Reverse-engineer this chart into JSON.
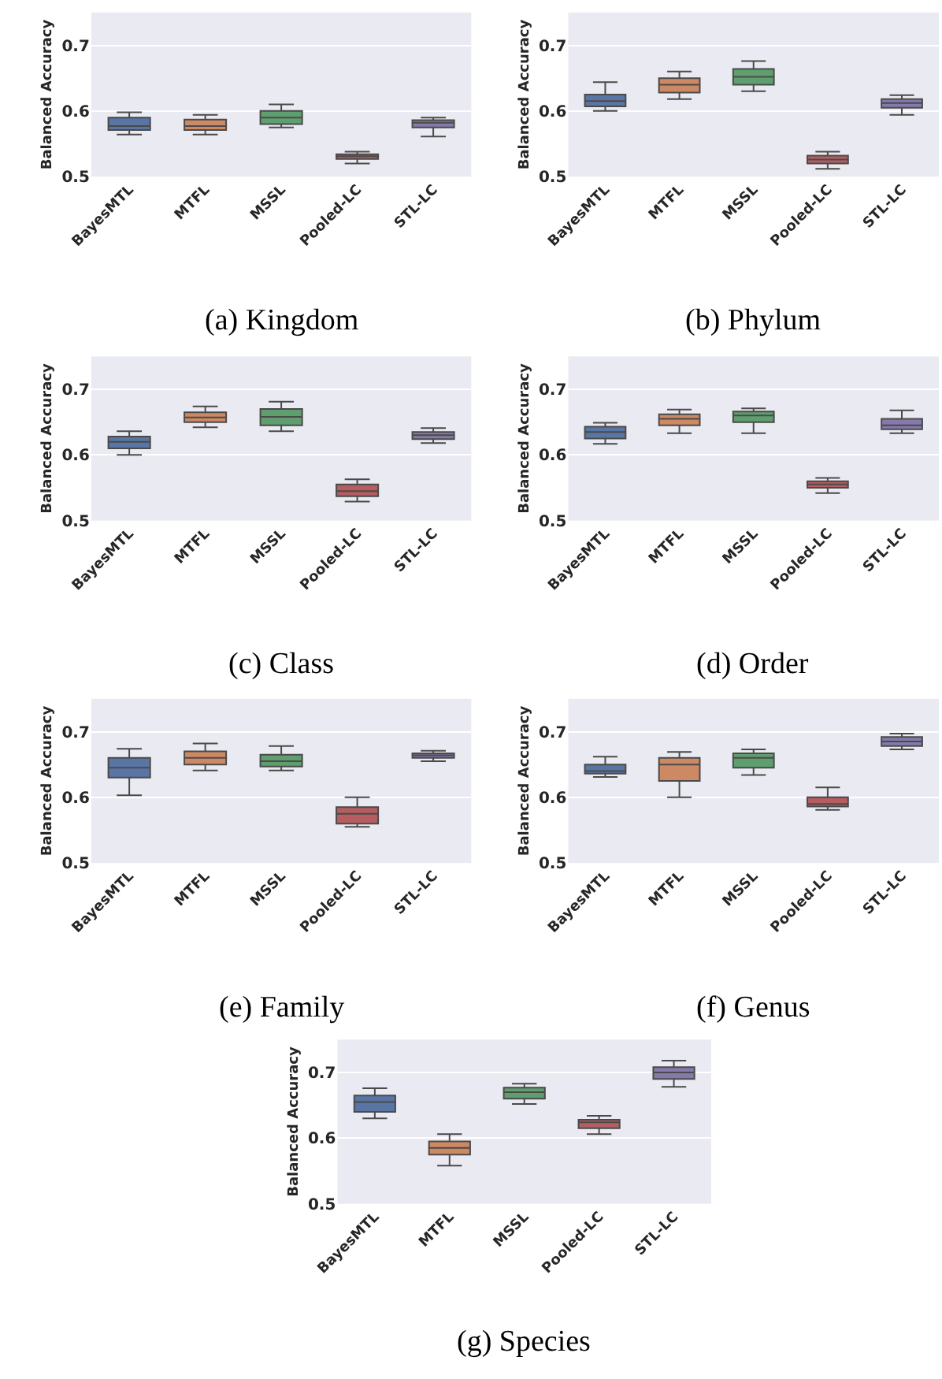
{
  "chart_data": [
    {
      "type": "box",
      "title": "(a) Kingdom",
      "ylabel": "Balanced Accuracy",
      "categories": [
        "BayesMTL",
        "MTFL",
        "MSSL",
        "Pooled-LC",
        "STL-LC"
      ],
      "colors": [
        "#5975a4",
        "#cc8963",
        "#5f9e6e",
        "#b55d60",
        "#857aab"
      ],
      "ylim": [
        0.5,
        0.75
      ],
      "yticks": [
        0.5,
        0.6,
        0.7
      ],
      "grid": "y",
      "boxes": [
        {
          "low": 0.564,
          "q1": 0.571,
          "median": 0.577,
          "q3": 0.59,
          "high": 0.598
        },
        {
          "low": 0.564,
          "q1": 0.571,
          "median": 0.577,
          "q3": 0.587,
          "high": 0.594
        },
        {
          "low": 0.575,
          "q1": 0.58,
          "median": 0.59,
          "q3": 0.6,
          "high": 0.61
        },
        {
          "low": 0.52,
          "q1": 0.527,
          "median": 0.531,
          "q3": 0.534,
          "high": 0.538
        },
        {
          "low": 0.561,
          "q1": 0.575,
          "median": 0.582,
          "q3": 0.586,
          "high": 0.59
        }
      ]
    },
    {
      "type": "box",
      "title": "(b) Phylum",
      "ylabel": "Balanced Accuracy",
      "categories": [
        "BayesMTL",
        "MTFL",
        "MSSL",
        "Pooled-LC",
        "STL-LC"
      ],
      "colors": [
        "#5975a4",
        "#cc8963",
        "#5f9e6e",
        "#b55d60",
        "#857aab"
      ],
      "ylim": [
        0.5,
        0.75
      ],
      "yticks": [
        0.5,
        0.6,
        0.7
      ],
      "grid": "y",
      "boxes": [
        {
          "low": 0.6,
          "q1": 0.607,
          "median": 0.615,
          "q3": 0.625,
          "high": 0.644
        },
        {
          "low": 0.618,
          "q1": 0.628,
          "median": 0.64,
          "q3": 0.65,
          "high": 0.66
        },
        {
          "low": 0.63,
          "q1": 0.64,
          "median": 0.652,
          "q3": 0.664,
          "high": 0.676
        },
        {
          "low": 0.512,
          "q1": 0.52,
          "median": 0.526,
          "q3": 0.532,
          "high": 0.538
        },
        {
          "low": 0.594,
          "q1": 0.605,
          "median": 0.612,
          "q3": 0.618,
          "high": 0.624
        }
      ]
    },
    {
      "type": "box",
      "title": "(c) Class",
      "ylabel": "Balanced Accuracy",
      "categories": [
        "BayesMTL",
        "MTFL",
        "MSSL",
        "Pooled-LC",
        "STL-LC"
      ],
      "colors": [
        "#5975a4",
        "#cc8963",
        "#5f9e6e",
        "#b55d60",
        "#857aab"
      ],
      "ylim": [
        0.5,
        0.75
      ],
      "yticks": [
        0.5,
        0.6,
        0.7
      ],
      "grid": "y",
      "boxes": [
        {
          "low": 0.6,
          "q1": 0.61,
          "median": 0.62,
          "q3": 0.628,
          "high": 0.636
        },
        {
          "low": 0.642,
          "q1": 0.65,
          "median": 0.657,
          "q3": 0.665,
          "high": 0.674
        },
        {
          "low": 0.636,
          "q1": 0.645,
          "median": 0.658,
          "q3": 0.67,
          "high": 0.681
        },
        {
          "low": 0.529,
          "q1": 0.537,
          "median": 0.545,
          "q3": 0.555,
          "high": 0.563
        },
        {
          "low": 0.618,
          "q1": 0.624,
          "median": 0.63,
          "q3": 0.635,
          "high": 0.641
        }
      ]
    },
    {
      "type": "box",
      "title": "(d) Order",
      "ylabel": "Balanced Accuracy",
      "categories": [
        "BayesMTL",
        "MTFL",
        "MSSL",
        "Pooled-LC",
        "STL-LC"
      ],
      "colors": [
        "#5975a4",
        "#cc8963",
        "#5f9e6e",
        "#b55d60",
        "#857aab"
      ],
      "ylim": [
        0.5,
        0.75
      ],
      "yticks": [
        0.5,
        0.6,
        0.7
      ],
      "grid": "y",
      "boxes": [
        {
          "low": 0.617,
          "q1": 0.625,
          "median": 0.635,
          "q3": 0.643,
          "high": 0.649
        },
        {
          "low": 0.633,
          "q1": 0.645,
          "median": 0.655,
          "q3": 0.662,
          "high": 0.669
        },
        {
          "low": 0.633,
          "q1": 0.65,
          "median": 0.66,
          "q3": 0.666,
          "high": 0.671
        },
        {
          "low": 0.542,
          "q1": 0.55,
          "median": 0.555,
          "q3": 0.56,
          "high": 0.565
        },
        {
          "low": 0.633,
          "q1": 0.639,
          "median": 0.645,
          "q3": 0.655,
          "high": 0.668
        }
      ]
    },
    {
      "type": "box",
      "title": "(e) Family",
      "ylabel": "Balanced Accuracy",
      "categories": [
        "BayesMTL",
        "MTFL",
        "MSSL",
        "Pooled-LC",
        "STL-LC"
      ],
      "colors": [
        "#5975a4",
        "#cc8963",
        "#5f9e6e",
        "#b55d60",
        "#857aab"
      ],
      "ylim": [
        0.5,
        0.75
      ],
      "yticks": [
        0.5,
        0.6,
        0.7
      ],
      "grid": "y",
      "boxes": [
        {
          "low": 0.603,
          "q1": 0.63,
          "median": 0.645,
          "q3": 0.66,
          "high": 0.674
        },
        {
          "low": 0.641,
          "q1": 0.65,
          "median": 0.66,
          "q3": 0.67,
          "high": 0.682
        },
        {
          "low": 0.641,
          "q1": 0.647,
          "median": 0.655,
          "q3": 0.665,
          "high": 0.678
        },
        {
          "low": 0.555,
          "q1": 0.56,
          "median": 0.575,
          "q3": 0.585,
          "high": 0.6
        },
        {
          "low": 0.655,
          "q1": 0.66,
          "median": 0.664,
          "q3": 0.667,
          "high": 0.671
        }
      ]
    },
    {
      "type": "box",
      "title": "(f) Genus",
      "ylabel": "Balanced Accuracy",
      "categories": [
        "BayesMTL",
        "MTFL",
        "MSSL",
        "Pooled-LC",
        "STL-LC"
      ],
      "colors": [
        "#5975a4",
        "#cc8963",
        "#5f9e6e",
        "#b55d60",
        "#857aab"
      ],
      "ylim": [
        0.5,
        0.75
      ],
      "yticks": [
        0.5,
        0.6,
        0.7
      ],
      "grid": "y",
      "boxes": [
        {
          "low": 0.631,
          "q1": 0.636,
          "median": 0.64,
          "q3": 0.65,
          "high": 0.662
        },
        {
          "low": 0.6,
          "q1": 0.625,
          "median": 0.65,
          "q3": 0.66,
          "high": 0.669
        },
        {
          "low": 0.634,
          "q1": 0.645,
          "median": 0.66,
          "q3": 0.667,
          "high": 0.673
        },
        {
          "low": 0.581,
          "q1": 0.586,
          "median": 0.59,
          "q3": 0.6,
          "high": 0.615
        },
        {
          "low": 0.673,
          "q1": 0.678,
          "median": 0.685,
          "q3": 0.692,
          "high": 0.697
        }
      ]
    },
    {
      "type": "box",
      "title": "(g) Species",
      "ylabel": "Balanced Accuracy",
      "categories": [
        "BayesMTL",
        "MTFL",
        "MSSL",
        "Pooled-LC",
        "STL-LC"
      ],
      "colors": [
        "#5975a4",
        "#cc8963",
        "#5f9e6e",
        "#b55d60",
        "#857aab"
      ],
      "ylim": [
        0.5,
        0.75
      ],
      "yticks": [
        0.5,
        0.6,
        0.7
      ],
      "grid": "y",
      "boxes": [
        {
          "low": 0.63,
          "q1": 0.64,
          "median": 0.655,
          "q3": 0.665,
          "high": 0.676
        },
        {
          "low": 0.558,
          "q1": 0.575,
          "median": 0.585,
          "q3": 0.595,
          "high": 0.606
        },
        {
          "low": 0.652,
          "q1": 0.66,
          "median": 0.67,
          "q3": 0.677,
          "high": 0.683
        },
        {
          "low": 0.606,
          "q1": 0.615,
          "median": 0.624,
          "q3": 0.628,
          "high": 0.634
        },
        {
          "low": 0.678,
          "q1": 0.69,
          "median": 0.7,
          "q3": 0.708,
          "high": 0.718
        }
      ]
    }
  ]
}
